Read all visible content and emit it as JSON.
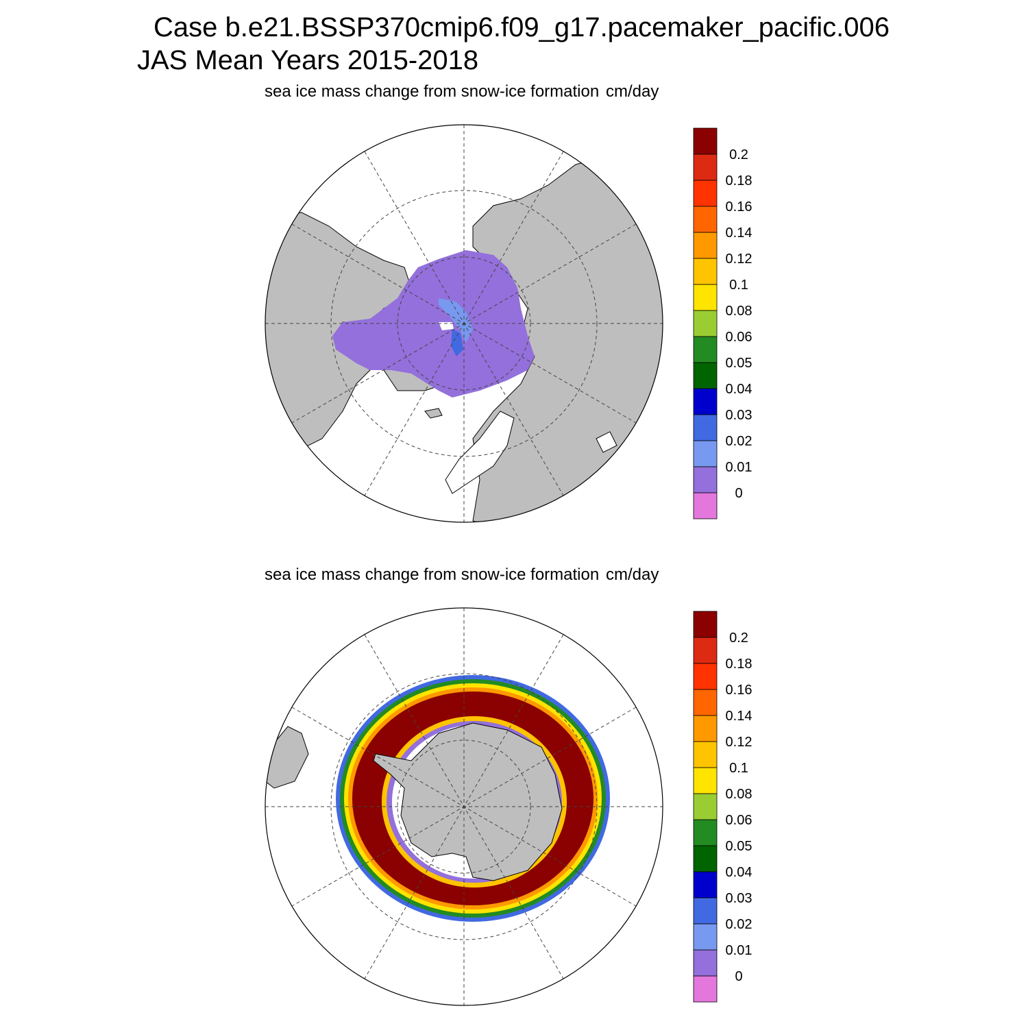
{
  "header": {
    "line1": "Case b.e21.BSSP370cmip6.f09_g17.pacemaker_pacific.006",
    "line2": "JAS Mean   Years 2015-2018"
  },
  "colors": {
    "land": "#bebebe",
    "ocean": "#ffffff",
    "grid": "#444444",
    "outline": "#000000"
  },
  "colorbar": {
    "colors": [
      "#e377dc",
      "#9370db",
      "#7799f0",
      "#4169e1",
      "#0000cd",
      "#006400",
      "#228b22",
      "#9acd32",
      "#ffe400",
      "#ffc400",
      "#ff9900",
      "#ff6600",
      "#ff3300",
      "#dd2a12",
      "#8b0000"
    ],
    "labels": [
      "0",
      "0.01",
      "0.02",
      "0.03",
      "0.04",
      "0.05",
      "0.06",
      "0.08",
      "0.1",
      "0.12",
      "0.14",
      "0.16",
      "0.18",
      "0.2"
    ]
  },
  "panels": [
    {
      "id": "north",
      "title": "sea ice mass change from snow-ice formation",
      "units": "cm/day"
    },
    {
      "id": "south",
      "title": "sea ice mass change from snow-ice formation",
      "units": "cm/day"
    }
  ]
}
